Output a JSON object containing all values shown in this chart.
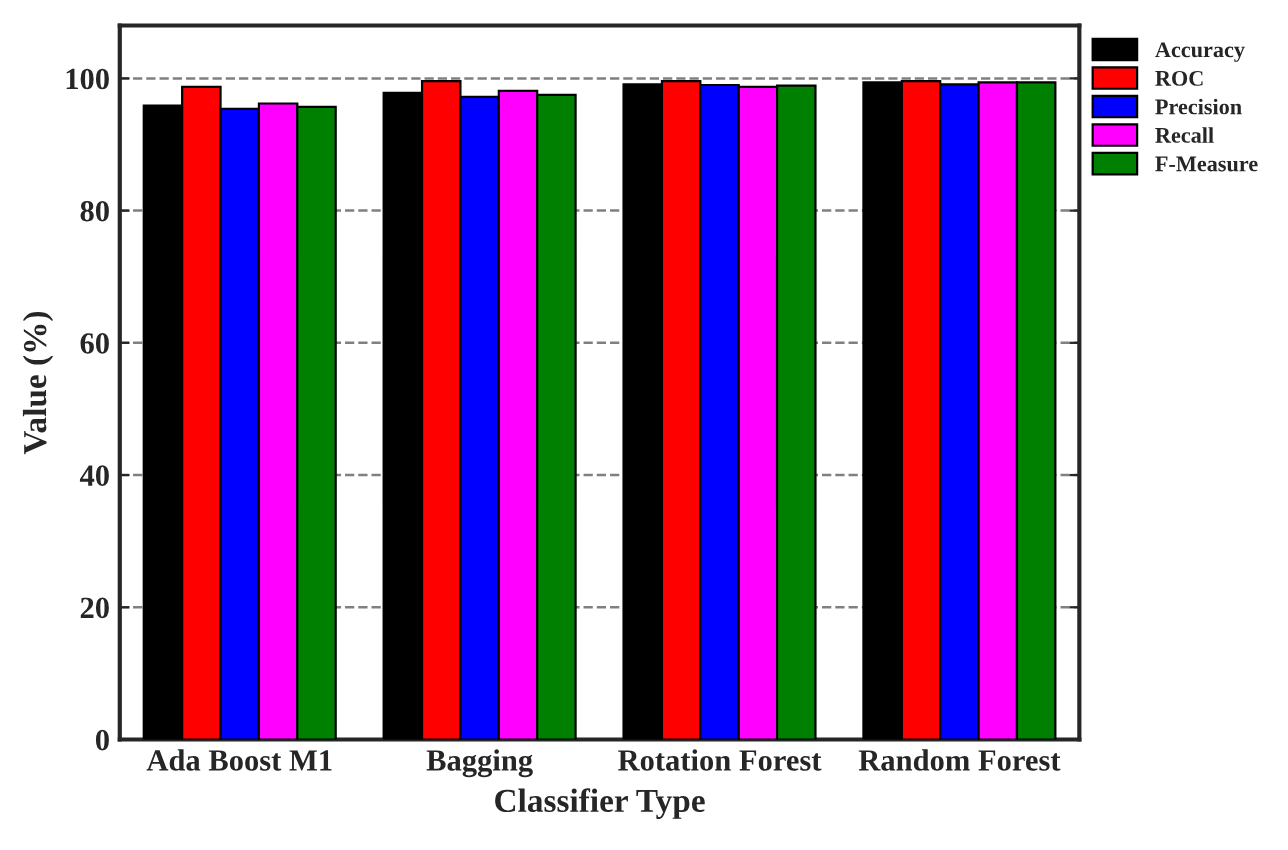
{
  "chart_data": {
    "type": "bar",
    "xlabel": "Classifier Type",
    "ylabel": "Value (%)",
    "categories": [
      "Ada Boost M1",
      "Bagging",
      "Rotation Forest",
      "Random Forest"
    ],
    "series": [
      {
        "name": "Accuracy",
        "color": "#000000",
        "values": [
          95.9,
          97.8,
          99.1,
          99.4
        ]
      },
      {
        "name": "ROC",
        "color": "#ff0000",
        "values": [
          98.7,
          99.6,
          99.6,
          99.6
        ]
      },
      {
        "name": "Precision",
        "color": "#0000ff",
        "values": [
          95.4,
          97.2,
          99.0,
          99.1
        ]
      },
      {
        "name": "Recall",
        "color": "#ff00ff",
        "values": [
          96.2,
          98.1,
          98.7,
          99.4
        ]
      },
      {
        "name": "F-Measure",
        "color": "#008000",
        "values": [
          95.7,
          97.5,
          98.9,
          99.4
        ]
      }
    ],
    "ylim": [
      0,
      108
    ],
    "yticks": [
      0,
      20,
      40,
      60,
      80,
      100
    ],
    "grid": "y",
    "legend": "top right"
  }
}
